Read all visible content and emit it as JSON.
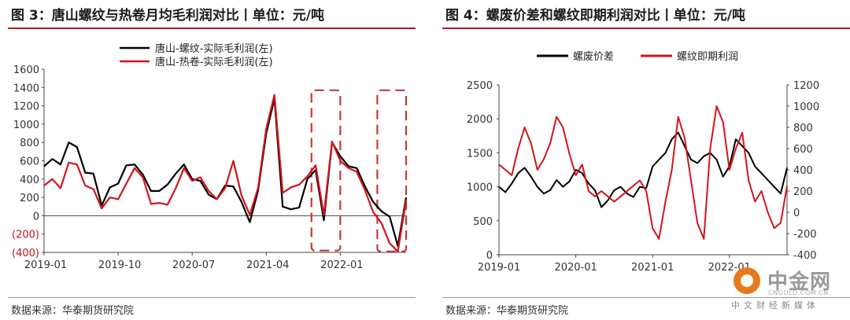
{
  "left": {
    "title": "图 3：唐山螺纹与热卷月均毛利润对比丨单位：元/吨",
    "source": "数据来源：华泰期货研究院"
  },
  "right": {
    "title": "图 4：螺废价差和螺纹即期利润对比丨单位：元/吨",
    "source": "数据来源：华泰期货研究院"
  },
  "watermark": {
    "name": "中金网",
    "url": "CNGOLD.COM.CN",
    "subtitle": "中文财经新媒体"
  },
  "colors": {
    "black": "#000000",
    "red": "#d4141c",
    "title_rule": "#c0141b",
    "box": "#c8373c"
  },
  "chart_data": [
    {
      "type": "line",
      "title": "图 3：唐山螺纹与热卷月均毛利润对比丨单位：元/吨",
      "x_ticks": [
        "2019-01",
        "2019-10",
        "2020-07",
        "2021-04",
        "2022-01"
      ],
      "x_tick_index": [
        0,
        9,
        18,
        27,
        36
      ],
      "y_ticks": [
        1600,
        1400,
        1200,
        1000,
        800,
        600,
        400,
        200,
        0,
        -200,
        -400
      ],
      "y_tick_labels": [
        "1600",
        "1400",
        "1200",
        "1000",
        "800",
        "600",
        "400",
        "200",
        "0",
        "(200)",
        "(400)"
      ],
      "ylim": [
        -400,
        1600
      ],
      "legend_position": "top-center",
      "series": [
        {
          "name": "唐山-螺纹-实际毛利润(左)",
          "color": "#000000",
          "values": [
            540,
            620,
            560,
            800,
            750,
            470,
            460,
            110,
            310,
            350,
            550,
            560,
            450,
            270,
            270,
            340,
            460,
            560,
            400,
            380,
            230,
            180,
            330,
            320,
            150,
            -70,
            270,
            900,
            1280,
            100,
            70,
            90,
            400,
            500,
            -50,
            800,
            650,
            540,
            520,
            320,
            150,
            50,
            -10,
            -330,
            200
          ]
        },
        {
          "name": "唐山-热卷-实际毛利润(左)",
          "color": "#d4141c",
          "values": [
            330,
            400,
            300,
            580,
            560,
            330,
            290,
            80,
            200,
            180,
            350,
            520,
            420,
            130,
            140,
            120,
            300,
            520,
            380,
            420,
            270,
            180,
            300,
            600,
            220,
            10,
            300,
            950,
            1320,
            250,
            310,
            340,
            430,
            550,
            10,
            810,
            600,
            520,
            480,
            280,
            40,
            -80,
            -300,
            -390,
            170
          ]
        }
      ],
      "annotations": [
        {
          "type": "dashed-box",
          "x_range_index": [
            32.5,
            36
          ],
          "y_range": [
            -380,
            1370
          ]
        },
        {
          "type": "dashed-box",
          "x_range_index": [
            40.5,
            44
          ],
          "y_range": [
            -390,
            1370
          ]
        }
      ]
    },
    {
      "type": "line",
      "title": "图 4：螺废价差和螺纹即期利润对比丨单位：元/吨",
      "x_ticks": [
        "2019-01",
        "2020-01",
        "2021-01",
        "2022-01"
      ],
      "x_tick_index": [
        0,
        12,
        24,
        36
      ],
      "y_left_ticks": [
        0,
        500,
        1000,
        1500,
        2000,
        2500
      ],
      "y_left_lim": [
        0,
        2500
      ],
      "y_right_ticks": [
        -400,
        -200,
        0,
        200,
        400,
        600,
        800,
        1000,
        1200
      ],
      "y_right_lim": [
        -400,
        1200
      ],
      "legend_position": "top-center",
      "series": [
        {
          "name": "螺废价差",
          "axis": "left",
          "color": "#000000",
          "x": [
            0,
            1,
            2,
            3,
            4,
            5,
            6,
            7,
            8,
            9,
            10,
            11,
            12,
            13,
            14,
            15,
            16,
            17,
            18,
            19,
            20,
            21,
            22,
            23,
            24,
            25,
            26,
            27,
            28,
            29,
            30,
            31,
            32,
            33,
            34,
            35,
            36,
            37,
            38,
            39,
            40,
            41,
            42,
            43,
            44,
            45
          ],
          "values": [
            1000,
            920,
            1050,
            1200,
            1280,
            1150,
            1000,
            900,
            950,
            1100,
            1000,
            1080,
            1250,
            1200,
            1050,
            950,
            700,
            800,
            950,
            1000,
            900,
            850,
            1000,
            980,
            1300,
            1400,
            1500,
            1700,
            1800,
            1600,
            1400,
            1350,
            1450,
            1500,
            1400,
            1150,
            1300,
            1700,
            1600,
            1500,
            1300,
            1200,
            1100,
            1000,
            900,
            1280
          ]
        },
        {
          "name": "螺纹即期利润",
          "axis": "right",
          "color": "#d4141c",
          "x": [
            0,
            1,
            2,
            3,
            4,
            5,
            6,
            7,
            8,
            9,
            10,
            11,
            12,
            13,
            14,
            15,
            16,
            17,
            18,
            19,
            20,
            21,
            22,
            23,
            24,
            25,
            26,
            27,
            28,
            29,
            30,
            31,
            32,
            33,
            34,
            35,
            36,
            37,
            38,
            39,
            40,
            41,
            42,
            43,
            44,
            45
          ],
          "values": [
            450,
            400,
            350,
            600,
            800,
            650,
            400,
            500,
            650,
            900,
            800,
            550,
            350,
            450,
            200,
            150,
            200,
            150,
            100,
            150,
            200,
            250,
            300,
            200,
            -150,
            -250,
            100,
            400,
            900,
            700,
            300,
            -100,
            -250,
            600,
            1000,
            850,
            400,
            600,
            750,
            300,
            100,
            200,
            0,
            -150,
            -100,
            250
          ]
        }
      ]
    }
  ]
}
